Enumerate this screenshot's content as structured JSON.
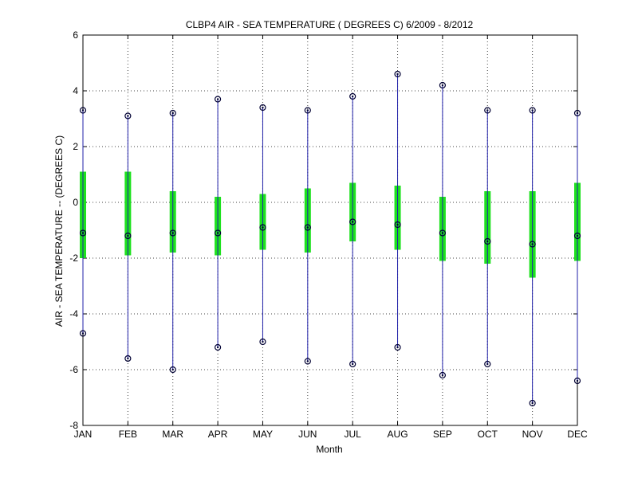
{
  "chart_data": {
    "type": "box",
    "title": "CLBP4  AIR - SEA TEMPERATURE ( DEGREES C) 6/2009 - 8/2012",
    "xlabel": "Month",
    "ylabel": "AIR - SEA TEMPERATURE -- (DEGREES C)",
    "categories": [
      "JAN",
      "FEB",
      "MAR",
      "APR",
      "MAY",
      "JUN",
      "JUL",
      "AUG",
      "SEP",
      "OCT",
      "NOV",
      "DEC"
    ],
    "ylim": [
      -8,
      6
    ],
    "yticks": [
      -8,
      -6,
      -4,
      -2,
      0,
      2,
      4,
      6
    ],
    "grid": true,
    "max": [
      3.3,
      3.1,
      3.2,
      3.7,
      3.4,
      3.3,
      3.8,
      4.6,
      4.2,
      3.3,
      3.3,
      3.2
    ],
    "q3": [
      1.1,
      1.1,
      0.4,
      0.2,
      0.3,
      0.5,
      0.7,
      0.6,
      0.2,
      0.4,
      0.4,
      0.7
    ],
    "median": [
      -1.1,
      -1.2,
      -1.1,
      -1.1,
      -0.9,
      -0.9,
      -0.7,
      -0.8,
      -1.1,
      -1.4,
      -1.5,
      -1.2
    ],
    "q1": [
      -2.0,
      -1.9,
      -1.8,
      -1.9,
      -1.7,
      -1.8,
      -1.4,
      -1.7,
      -2.1,
      -2.2,
      -2.7,
      -2.1
    ],
    "min": [
      -4.7,
      -5.6,
      -6.0,
      -5.2,
      -5.0,
      -5.7,
      -5.8,
      -5.2,
      -6.2,
      -5.8,
      -7.2,
      -6.4
    ],
    "colors": {
      "whisker": "#1f1fa8",
      "box": "#1ee11e",
      "marker": "#000033",
      "grid": "#444444"
    }
  }
}
